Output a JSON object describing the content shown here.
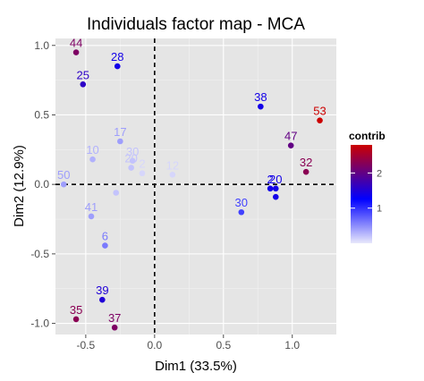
{
  "chart_data": {
    "type": "scatter",
    "title": "Individuals factor map - MCA",
    "xlabel": "Dim1 (33.5%)",
    "ylabel": "Dim2 (12.9%)",
    "xlim": [
      -0.72,
      1.32
    ],
    "ylim": [
      -1.08,
      1.05
    ],
    "xticks": [
      -0.5,
      0.0,
      0.5,
      1.0
    ],
    "xtick_labels": [
      "-0.5",
      "0.0",
      "0.5",
      "1.0"
    ],
    "yticks": [
      -1.0,
      -0.5,
      0.0,
      0.5,
      1.0
    ],
    "ytick_labels": [
      "-1.0",
      "-0.5",
      "0.0",
      "0.5",
      "1.0"
    ],
    "grid": true,
    "reference_lines": {
      "x": 0,
      "y": 0,
      "style": "dashed"
    },
    "color_scale": {
      "name": "contrib",
      "range": [
        0,
        2.8
      ],
      "ticks": [
        1,
        2
      ],
      "tick_labels": [
        "1",
        "2"
      ],
      "low_color": "#e8e8fb",
      "mid_color": "#0000ff",
      "high_color": "#cc0000",
      "legend_position": "right"
    },
    "points": [
      {
        "label": "44",
        "x": -0.57,
        "y": 0.95,
        "contrib": 2.2
      },
      {
        "label": "25",
        "x": -0.52,
        "y": 0.72,
        "contrib": 1.6
      },
      {
        "label": "28",
        "x": -0.27,
        "y": 0.85,
        "contrib": 1.4
      },
      {
        "label": "17",
        "x": -0.25,
        "y": 0.31,
        "contrib": 0.4
      },
      {
        "label": "10",
        "x": -0.45,
        "y": 0.18,
        "contrib": 0.3
      },
      {
        "label": "30",
        "x": -0.16,
        "y": 0.17,
        "contrib": 0.2
      },
      {
        "label": "20",
        "x": -0.17,
        "y": 0.12,
        "contrib": 0.2
      },
      {
        "label": "2",
        "x": -0.09,
        "y": 0.08,
        "contrib": 0.1
      },
      {
        "label": "12",
        "x": 0.13,
        "y": 0.07,
        "contrib": 0.1
      },
      {
        "label": "50",
        "x": -0.66,
        "y": 0.0,
        "contrib": 0.4
      },
      {
        "label": "41",
        "x": -0.46,
        "y": -0.23,
        "contrib": 0.4
      },
      {
        "label": "6",
        "x": -0.36,
        "y": -0.44,
        "contrib": 0.6
      },
      {
        "label": "39",
        "x": -0.38,
        "y": -0.83,
        "contrib": 1.5
      },
      {
        "label": "35",
        "x": -0.57,
        "y": -0.97,
        "contrib": 2.3
      },
      {
        "label": "37",
        "x": -0.29,
        "y": -1.03,
        "contrib": 2.2
      },
      {
        "label": "38",
        "x": 0.77,
        "y": 0.56,
        "contrib": 1.4
      },
      {
        "label": "53",
        "x": 1.2,
        "y": 0.46,
        "contrib": 2.8
      },
      {
        "label": "47",
        "x": 0.99,
        "y": 0.28,
        "contrib": 2.0
      },
      {
        "label": "32",
        "x": 1.1,
        "y": 0.09,
        "contrib": 2.3
      },
      {
        "label": "2",
        "x": 0.84,
        "y": -0.03,
        "contrib": 1.4
      },
      {
        "label": "20",
        "x": 0.88,
        "y": -0.03,
        "contrib": 1.4
      },
      {
        "label": "30",
        "x": 0.63,
        "y": -0.2,
        "contrib": 0.9
      },
      {
        "label": "",
        "x": 0.88,
        "y": -0.09,
        "contrib": 1.4
      },
      {
        "label": "",
        "x": -0.28,
        "y": -0.06,
        "contrib": 0.2
      }
    ]
  }
}
